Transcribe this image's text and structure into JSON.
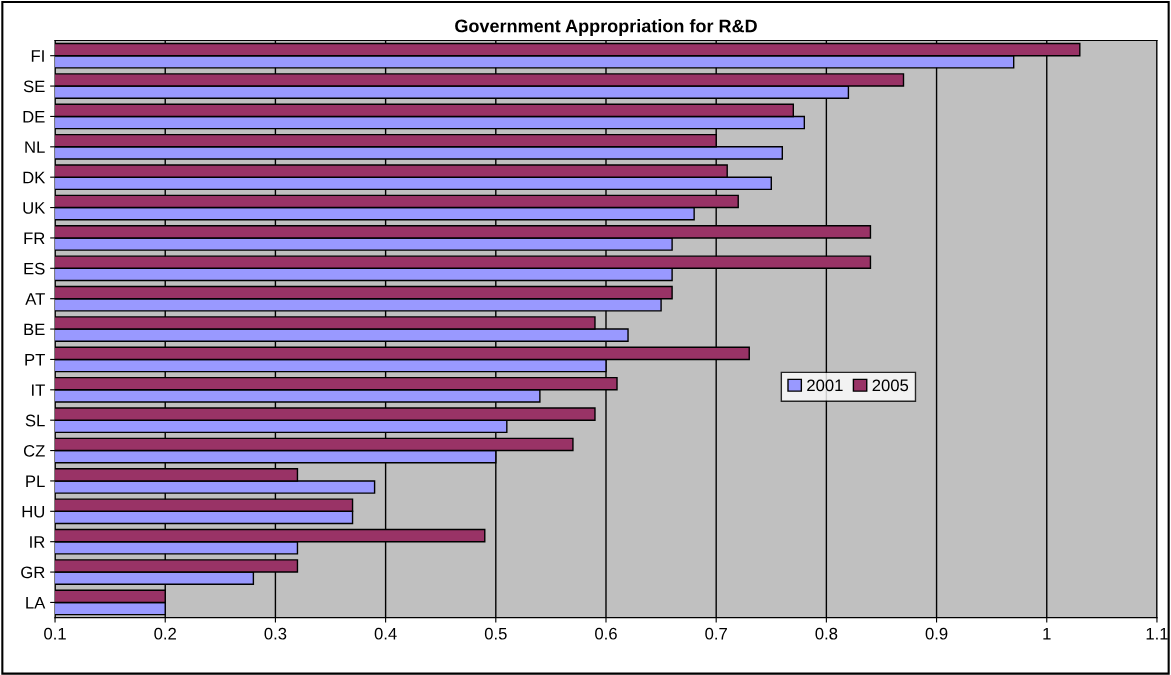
{
  "chart_data": {
    "type": "bar",
    "orientation": "horizontal",
    "title": "Government Appropriation for R&D",
    "categories": [
      "FI",
      "SE",
      "DE",
      "NL",
      "DK",
      "UK",
      "FR",
      "ES",
      "AT",
      "BE",
      "PT",
      "IT",
      "SL",
      "CZ",
      "PL",
      "HU",
      "IR",
      "GR",
      "LA"
    ],
    "series": [
      {
        "name": "2001",
        "color": "#9999ff",
        "values": [
          0.97,
          0.82,
          0.78,
          0.76,
          0.75,
          0.68,
          0.66,
          0.66,
          0.65,
          0.62,
          0.6,
          0.54,
          0.51,
          0.5,
          0.39,
          0.37,
          0.32,
          0.28,
          0.2
        ]
      },
      {
        "name": "2005",
        "color": "#993366",
        "values": [
          1.03,
          0.87,
          0.77,
          0.7,
          0.71,
          0.72,
          0.84,
          0.84,
          0.66,
          0.59,
          0.73,
          0.61,
          0.59,
          0.57,
          0.32,
          0.37,
          0.49,
          0.32,
          0.2
        ]
      }
    ],
    "xlim": [
      0.1,
      1.1
    ],
    "xticks": [
      0.1,
      0.2,
      0.3,
      0.4,
      0.5,
      0.6,
      0.7,
      0.8,
      0.9,
      {
        "value": 1,
        "label": "1"
      },
      1.1
    ],
    "grid": "x",
    "legend": "right"
  }
}
